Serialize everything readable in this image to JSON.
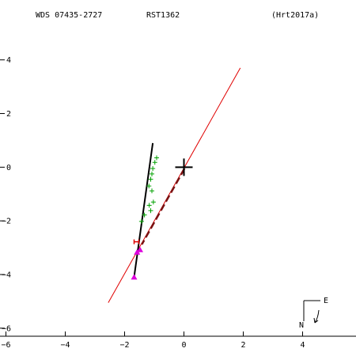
{
  "header": {
    "wds_id": "WDS 07435-2727",
    "discoverer": "RST1362",
    "reference": "(Hrt2017a)"
  },
  "compass": {
    "east": "E",
    "north": "N"
  },
  "chart_data": {
    "type": "scatter",
    "title": "",
    "xlabel": "",
    "ylabel": "",
    "xlim": [
      -6.2,
      5.8
    ],
    "ylim": [
      -6.3,
      5.2
    ],
    "x_ticks": [
      -6,
      -4,
      -2,
      0,
      2,
      4
    ],
    "y_ticks": [
      -6,
      -4,
      -2,
      0,
      2,
      4
    ],
    "x_tick_labels": [
      "−6",
      "−4",
      "−2",
      "0",
      "2",
      "4"
    ],
    "y_tick_labels": [
      "−6",
      "−4",
      "−2",
      "0",
      "2",
      "4"
    ],
    "grid": false,
    "primary": {
      "x": 0,
      "y": 0
    },
    "orbit_line": {
      "x": [
        -1.05,
        -1.68
      ],
      "y": [
        0.9,
        -4.1
      ]
    },
    "reference_line": {
      "x": [
        -2.55,
        1.9
      ],
      "y": [
        -5.05,
        3.7
      ],
      "color": "#e00000"
    },
    "dashed_line": {
      "x": [
        0.02,
        -1.42
      ],
      "y": [
        -0.05,
        -2.88
      ],
      "color": "#7a1212"
    },
    "observations": {
      "color": "#00a000",
      "x": [
        -0.92,
        -0.98,
        -1.05,
        -1.08,
        -1.12,
        -1.18,
        -1.08,
        -1.03,
        -1.17,
        -1.12,
        -1.33,
        -1.43
      ],
      "y": [
        0.35,
        0.18,
        -0.05,
        -0.25,
        -0.45,
        -0.7,
        -0.88,
        -1.3,
        -1.42,
        -1.62,
        -1.78,
        -2.02
      ]
    },
    "interferometric": {
      "color": "#dd0000",
      "x": [
        -1.6
      ],
      "y": [
        -2.78
      ]
    },
    "predicted": {
      "color": "#dd00dd",
      "x": [
        -1.58,
        -1.48,
        -1.68
      ],
      "y": [
        -3.17,
        -3.08,
        -4.1
      ]
    },
    "colors": {
      "axes": "#000000",
      "background": "#ffffff"
    }
  }
}
